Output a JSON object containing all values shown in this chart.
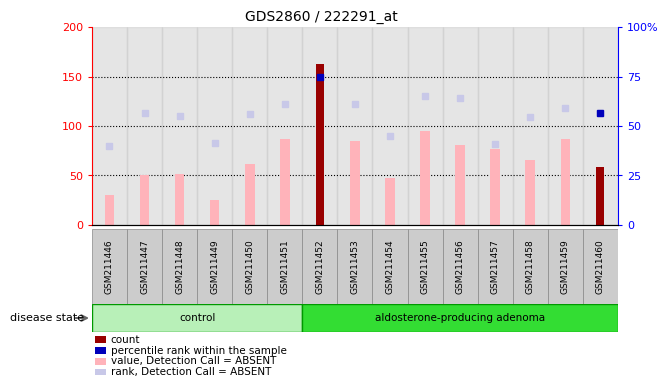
{
  "title": "GDS2860 / 222291_at",
  "samples": [
    "GSM211446",
    "GSM211447",
    "GSM211448",
    "GSM211449",
    "GSM211450",
    "GSM211451",
    "GSM211452",
    "GSM211453",
    "GSM211454",
    "GSM211455",
    "GSM211456",
    "GSM211457",
    "GSM211458",
    "GSM211459",
    "GSM211460"
  ],
  "groups": [
    "control",
    "control",
    "control",
    "control",
    "control",
    "control",
    "aldosterone-producing adenoma",
    "aldosterone-producing adenoma",
    "aldosterone-producing adenoma",
    "aldosterone-producing adenoma",
    "aldosterone-producing adenoma",
    "aldosterone-producing adenoma",
    "aldosterone-producing adenoma",
    "aldosterone-producing adenoma",
    "aldosterone-producing adenoma"
  ],
  "value_absent": [
    30,
    50,
    52,
    25,
    62,
    87,
    0,
    85,
    47,
    95,
    81,
    77,
    66,
    87,
    0
  ],
  "rank_absent": [
    80,
    113,
    110,
    83,
    112,
    122,
    0,
    122,
    90,
    130,
    128,
    82,
    109,
    118,
    113
  ],
  "count": [
    0,
    0,
    0,
    0,
    0,
    0,
    163,
    0,
    0,
    0,
    0,
    0,
    0,
    0,
    59
  ],
  "percentile_rank": [
    0,
    0,
    0,
    0,
    0,
    0,
    150,
    0,
    0,
    0,
    0,
    0,
    0,
    0,
    113
  ],
  "has_count": [
    false,
    false,
    false,
    false,
    false,
    false,
    true,
    false,
    false,
    false,
    false,
    false,
    false,
    false,
    true
  ],
  "has_percentile": [
    false,
    false,
    false,
    false,
    false,
    false,
    true,
    false,
    false,
    false,
    false,
    false,
    false,
    false,
    true
  ],
  "ylim_left": [
    0,
    200
  ],
  "yticks_left": [
    0,
    50,
    100,
    150,
    200
  ],
  "ytick_labels_left": [
    "0",
    "50",
    "100",
    "150",
    "200"
  ],
  "ytick_labels_right": [
    "0",
    "25",
    "50",
    "75",
    "100%"
  ],
  "bar_color_absent": "#ffb3ba",
  "rank_color_absent": "#c8c8e8",
  "count_color": "#990000",
  "percentile_color": "#0000bb",
  "group_color_control": "#b8f0b8",
  "group_color_adenoma": "#33dd33",
  "group_border_color": "#009900",
  "disease_label": "disease state",
  "legend_items": [
    {
      "color": "#990000",
      "label": "count",
      "marker": "square"
    },
    {
      "color": "#0000bb",
      "label": "percentile rank within the sample",
      "marker": "square"
    },
    {
      "color": "#ffb3ba",
      "label": "value, Detection Call = ABSENT",
      "marker": "square"
    },
    {
      "color": "#c8c8e8",
      "label": "rank, Detection Call = ABSENT",
      "marker": "square"
    }
  ]
}
